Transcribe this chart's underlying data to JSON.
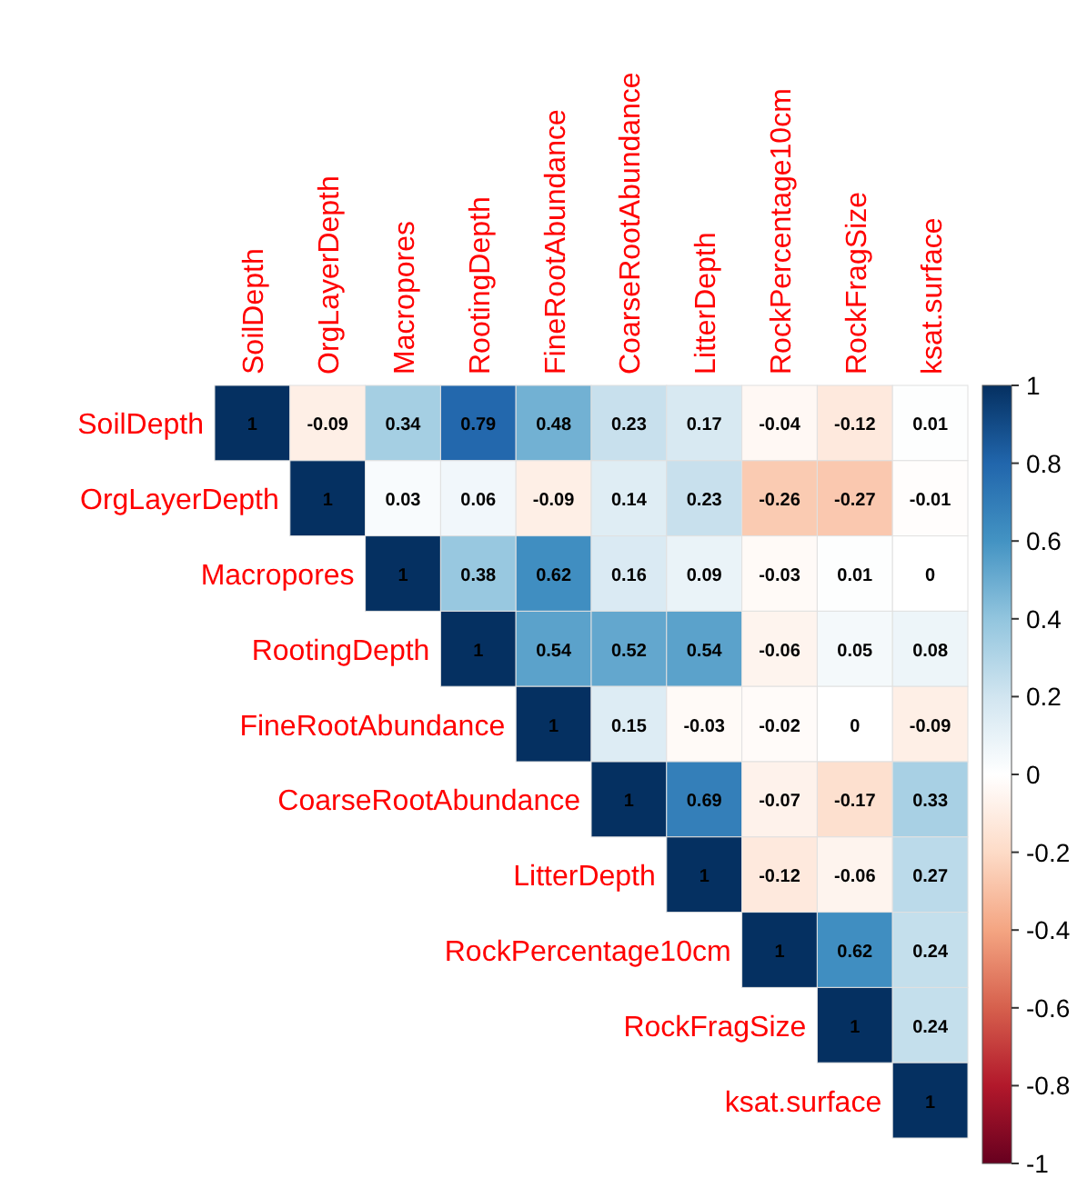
{
  "chart_data": {
    "type": "heatmap",
    "categories": [
      "SoilDepth",
      "OrgLayerDepth",
      "Macropores",
      "RootingDepth",
      "FineRootAbundance",
      "CoarseRootAbundance",
      "LitterDepth",
      "RockPercentage10cm",
      "RockFragSize",
      "ksat.surface"
    ],
    "y_categories": [
      "SoilDepth",
      "OrgLayerDepth",
      "Macropores",
      "RootingDepth",
      "FineRootAbundance",
      "CoarseRootAbundance",
      "LitterDepth",
      "RockPercentage10cm",
      "RockFragSize",
      "ksat.surface"
    ],
    "cells": [
      [
        1,
        -0.09,
        0.34,
        0.79,
        0.48,
        0.23,
        0.17,
        -0.04,
        -0.12,
        0.01
      ],
      [
        null,
        1,
        0.03,
        0.06,
        -0.09,
        0.14,
        0.23,
        -0.26,
        -0.27,
        -0.01
      ],
      [
        null,
        null,
        1,
        0.38,
        0.62,
        0.16,
        0.09,
        -0.03,
        0.01,
        0
      ],
      [
        null,
        null,
        null,
        1,
        0.54,
        0.52,
        0.54,
        -0.06,
        0.05,
        0.08
      ],
      [
        null,
        null,
        null,
        null,
        1,
        0.15,
        -0.03,
        -0.02,
        0,
        -0.09
      ],
      [
        null,
        null,
        null,
        null,
        null,
        1,
        0.69,
        -0.07,
        -0.17,
        0.33
      ],
      [
        null,
        null,
        null,
        null,
        null,
        null,
        1,
        -0.12,
        -0.06,
        0.27
      ],
      [
        null,
        null,
        null,
        null,
        null,
        null,
        null,
        1,
        0.62,
        0.24
      ],
      [
        null,
        null,
        null,
        null,
        null,
        null,
        null,
        null,
        1,
        0.24
      ],
      [
        null,
        null,
        null,
        null,
        null,
        null,
        null,
        null,
        null,
        1
      ]
    ],
    "clim": [
      -1,
      1
    ],
    "cticks": [
      -1,
      -0.8,
      -0.6,
      -0.4,
      -0.2,
      0,
      0.2,
      0.4,
      0.6,
      0.8,
      1
    ],
    "data_labels": true
  }
}
